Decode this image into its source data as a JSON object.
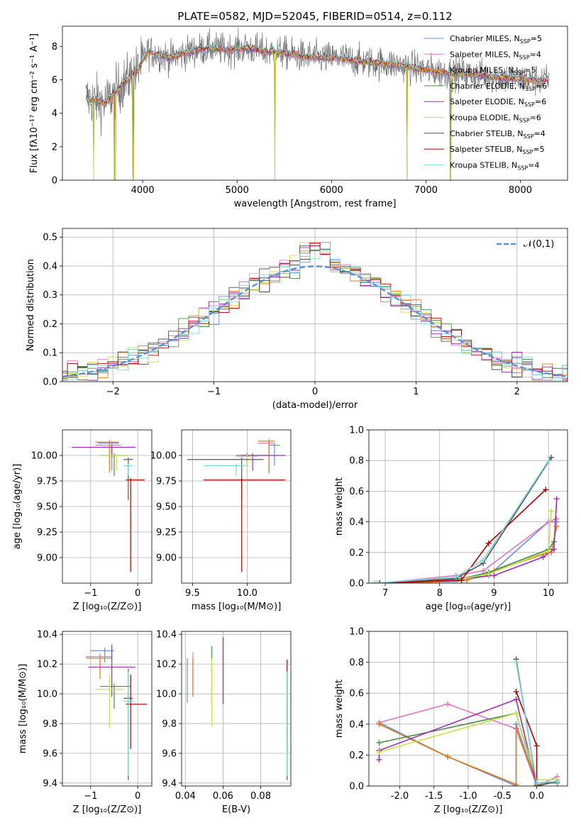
{
  "series_styles": [
    {
      "name": "Chabrier MILES, N",
      "sub": "SSP",
      "val": "=5",
      "color": "#6b8fd4"
    },
    {
      "name": "Salpeter MILES, N",
      "sub": "SSP",
      "val": "=4",
      "color": "#e377c2"
    },
    {
      "name": "Kroupa MILES, N",
      "sub": "SSP",
      "val": "=5",
      "color": "#e07b1a"
    },
    {
      "name": "Chabrier ELODIE, N",
      "sub": "SSP",
      "val": "=6",
      "color": "#4a8a4a"
    },
    {
      "name": "Salpeter ELODIE, N",
      "sub": "SSP",
      "val": "=6",
      "color": "#9b2fb5"
    },
    {
      "name": "Kroupa ELODIE, N",
      "sub": "SSP",
      "val": "=6",
      "color": "#c8e04a"
    },
    {
      "name": "Chabrier STELIB, N",
      "sub": "SSP",
      "val": "=4",
      "color": "#555555"
    },
    {
      "name": "Salpeter STELIB, N",
      "sub": "SSP",
      "val": "=5",
      "color": "#b00000"
    },
    {
      "name": "Kroupa STELIB, N",
      "sub": "SSP",
      "val": "=4",
      "color": "#7fd8e0"
    }
  ],
  "chart_data": [
    {
      "id": "spectrum",
      "type": "line",
      "title": "PLATE=0582, MJD=52045, FIBERID=0514, z=0.112",
      "xlabel": "wavelength [Angstrom, rest frame]",
      "ylabel": "Flux [fλ10⁻¹⁷ erg cm⁻² s⁻¹ A⁻¹]",
      "xlim": [
        3150,
        8500
      ],
      "ylim": [
        0,
        9.2
      ],
      "xticks": [
        4000,
        5000,
        6000,
        7000,
        8000
      ],
      "yticks": [
        0,
        2,
        4,
        6,
        8
      ],
      "data_range": [
        3400,
        8300
      ],
      "continuum_points": [
        [
          3400,
          4.9
        ],
        [
          3600,
          4.6
        ],
        [
          3800,
          5.8
        ],
        [
          3950,
          6.6
        ],
        [
          4050,
          7.7
        ],
        [
          4300,
          7.3
        ],
        [
          4500,
          7.7
        ],
        [
          4700,
          7.9
        ],
        [
          4900,
          7.8
        ],
        [
          5100,
          7.9
        ],
        [
          5300,
          7.7
        ],
        [
          5500,
          7.6
        ],
        [
          5700,
          7.4
        ],
        [
          5900,
          7.3
        ],
        [
          6100,
          7.3
        ],
        [
          6300,
          7.1
        ],
        [
          6500,
          7.0
        ],
        [
          6700,
          6.9
        ],
        [
          6900,
          6.7
        ],
        [
          7100,
          6.5
        ],
        [
          7300,
          6.4
        ],
        [
          7500,
          6.3
        ],
        [
          7700,
          6.2
        ],
        [
          7900,
          6.1
        ],
        [
          8100,
          6.0
        ],
        [
          8300,
          6.0
        ]
      ],
      "dips": [
        [
          3480,
          0
        ],
        [
          3700,
          0
        ],
        [
          3900,
          0
        ],
        [
          5400,
          0
        ],
        [
          6800,
          0
        ],
        [
          7260,
          0
        ]
      ],
      "legend": "right"
    },
    {
      "id": "residuals",
      "type": "step-histogram",
      "xlabel": "(data-model)/error",
      "ylabel": "Normed distribution",
      "xlim": [
        -2.5,
        2.5
      ],
      "ylim": [
        0,
        0.53
      ],
      "xticks": [
        -2,
        -1,
        0,
        1,
        2
      ],
      "yticks": [
        0.0,
        0.1,
        0.2,
        0.3,
        0.4,
        0.5
      ],
      "bin_width": 0.1,
      "reference": {
        "name": "𝒩(0,1)",
        "mean": 0,
        "sd": 1,
        "color": "#5b8fd6"
      },
      "grid": true
    },
    {
      "id": "age_vs_Z",
      "type": "errorbar",
      "xlabel": "Z [log₁₀(Z/Z⊙)]",
      "ylabel": "age  [log₁₀(age/yr)]",
      "xlim": [
        -1.6,
        0.3
      ],
      "ylim": [
        8.75,
        10.25
      ],
      "xticks": [
        -1,
        0
      ],
      "yticks": [
        9.0,
        9.25,
        9.5,
        9.75,
        10.0
      ],
      "points": [
        {
          "x": -0.55,
          "xerr": [
            0.3,
            0.15
          ],
          "y": 10.12,
          "yerr": [
            0.25,
            0.02
          ]
        },
        {
          "x": -0.55,
          "xerr": [
            0.35,
            0.2
          ],
          "y": 10.1,
          "yerr": [
            0.25,
            0.03
          ]
        },
        {
          "x": -0.6,
          "xerr": [
            0.3,
            0.2
          ],
          "y": 10.13,
          "yerr": [
            0.3,
            0.02
          ]
        },
        {
          "x": -0.5,
          "xerr": [
            0.3,
            0.3
          ],
          "y": 10.0,
          "yerr": [
            0.2,
            0.02
          ]
        },
        {
          "x": -0.55,
          "xerr": [
            0.85,
            0.5
          ],
          "y": 10.08,
          "yerr": [
            0.1,
            0.02
          ]
        },
        {
          "x": -0.45,
          "xerr": [
            0.35,
            0.3
          ],
          "y": 10.0,
          "yerr": [
            0.15,
            0.02
          ]
        },
        {
          "x": -0.2,
          "xerr": [
            0.1,
            0.1
          ],
          "y": 9.96,
          "yerr": [
            0.4,
            0.02
          ]
        },
        {
          "x": -0.15,
          "xerr": [
            0.1,
            0.3
          ],
          "y": 9.76,
          "yerr": [
            0.9,
            0.02
          ]
        },
        {
          "x": -0.2,
          "xerr": [
            0.1,
            0.1
          ],
          "y": 9.9,
          "yerr": [
            0.1,
            0.02
          ]
        }
      ]
    },
    {
      "id": "age_vs_mass",
      "type": "errorbar",
      "xlabel": "mass [log₁₀(M/M⊙)]",
      "ylabel": "",
      "xlim": [
        9.4,
        10.4
      ],
      "ylim": [
        8.75,
        10.25
      ],
      "xticks": [
        9.5,
        10.0
      ],
      "yticks": [
        9.0,
        9.25,
        9.5,
        9.75,
        10.0
      ],
      "points": [
        {
          "x": 10.25,
          "xerr": [
            0.05,
            0.05
          ],
          "y": 10.1,
          "yerr": [
            0.2,
            0.02
          ]
        },
        {
          "x": 10.2,
          "xerr": [
            0.1,
            0.05
          ],
          "y": 10.12,
          "yerr": [
            0.3,
            0.02
          ]
        },
        {
          "x": 10.2,
          "xerr": [
            0.1,
            0.05
          ],
          "y": 10.14,
          "yerr": [
            0.3,
            0.02
          ]
        },
        {
          "x": 10.0,
          "xerr": [
            0.1,
            0.2
          ],
          "y": 10.0,
          "yerr": [
            0.1,
            0.02
          ]
        },
        {
          "x": 10.05,
          "xerr": [
            0.1,
            0.3
          ],
          "y": 10.0,
          "yerr": [
            0.15,
            0.02
          ]
        },
        {
          "x": 10.0,
          "xerr": [
            0.1,
            0.1
          ],
          "y": 9.99,
          "yerr": [
            0.1,
            0.02
          ]
        },
        {
          "x": 9.95,
          "xerr": [
            0.5,
            0.2
          ],
          "y": 9.96,
          "yerr": [
            0.4,
            0.02
          ]
        },
        {
          "x": 9.95,
          "xerr": [
            0.35,
            0.4
          ],
          "y": 9.76,
          "yerr": [
            0.9,
            0.02
          ]
        },
        {
          "x": 9.9,
          "xerr": [
            0.3,
            0.1
          ],
          "y": 9.9,
          "yerr": [
            0.1,
            0.02
          ]
        }
      ]
    },
    {
      "id": "mass_weight_vs_age",
      "type": "line",
      "xlabel": "age  [log₁₀(age/yr)]",
      "ylabel": "mass weight",
      "xlim": [
        6.7,
        10.35
      ],
      "ylim": [
        0,
        1.0
      ],
      "xticks": [
        7,
        8,
        9,
        10
      ],
      "yticks": [
        0.0,
        0.2,
        0.4,
        0.6,
        0.8,
        1.0
      ],
      "series": [
        {
          "x": [
            6.8,
            8.3,
            8.9,
            10.0,
            10.15
          ],
          "y": [
            0.0,
            0.01,
            0.05,
            0.4,
            0.4
          ]
        },
        {
          "x": [
            6.9,
            8.3,
            8.8,
            10.0,
            10.15
          ],
          "y": [
            0.0,
            0.05,
            0.08,
            0.4,
            0.42
          ]
        },
        {
          "x": [
            7.5,
            8.5,
            9.0,
            10.0,
            10.05,
            10.15
          ],
          "y": [
            0.0,
            0.02,
            0.08,
            0.2,
            0.2,
            0.37
          ]
        },
        {
          "x": [
            6.85,
            8.3,
            8.9,
            10.0,
            10.1
          ],
          "y": [
            0.0,
            0.02,
            0.07,
            0.22,
            0.27
          ]
        },
        {
          "x": [
            6.9,
            8.4,
            9.0,
            9.9,
            10.1,
            10.15
          ],
          "y": [
            0.0,
            0.03,
            0.05,
            0.17,
            0.22,
            0.55
          ]
        },
        {
          "x": [
            6.85,
            8.3,
            8.9,
            10.0,
            10.05
          ],
          "y": [
            0.0,
            0.02,
            0.06,
            0.21,
            0.47
          ]
        },
        {
          "x": [
            6.8,
            8.3,
            8.8,
            10.05
          ],
          "y": [
            0.0,
            0.03,
            0.13,
            0.82
          ]
        },
        {
          "x": [
            6.9,
            8.4,
            8.9,
            9.95
          ],
          "y": [
            0.0,
            0.02,
            0.26,
            0.61
          ]
        },
        {
          "x": [
            6.8,
            8.3,
            8.8,
            10.0
          ],
          "y": [
            0.0,
            0.04,
            0.15,
            0.8
          ]
        }
      ]
    },
    {
      "id": "mass_vs_Z",
      "type": "errorbar",
      "xlabel": "Z [log₁₀(Z/Z⊙)]",
      "ylabel": "mass [log₁₀(M/M⊙)]",
      "xlim": [
        -1.6,
        0.3
      ],
      "ylim": [
        9.38,
        10.42
      ],
      "xticks": [
        -1,
        0
      ],
      "yticks": [
        9.4,
        9.6,
        9.8,
        10.0,
        10.2,
        10.4
      ],
      "points": [
        {
          "x": -0.7,
          "xerr": [
            0.3,
            0.2
          ],
          "y": 10.29,
          "yerr": [
            0.08,
            0.02
          ]
        },
        {
          "x": -0.8,
          "xerr": [
            0.3,
            0.25
          ],
          "y": 10.25,
          "yerr": [
            0.11,
            0.02
          ]
        },
        {
          "x": -0.8,
          "xerr": [
            0.3,
            0.25
          ],
          "y": 10.24,
          "yerr": [
            0.14,
            0.02
          ]
        },
        {
          "x": -0.5,
          "xerr": [
            0.3,
            0.35
          ],
          "y": 10.05,
          "yerr": [
            0.15,
            0.02
          ]
        },
        {
          "x": -0.55,
          "xerr": [
            0.5,
            0.5
          ],
          "y": 10.18,
          "yerr": [
            0.2,
            0.15
          ]
        },
        {
          "x": -0.6,
          "xerr": [
            0.3,
            0.3
          ],
          "y": 10.03,
          "yerr": [
            0.26,
            0.1
          ]
        },
        {
          "x": -0.2,
          "xerr": [
            0.1,
            0.1
          ],
          "y": 9.97,
          "yerr": [
            0.55,
            0.2
          ]
        },
        {
          "x": -0.15,
          "xerr": [
            0.1,
            0.35
          ],
          "y": 9.93,
          "yerr": [
            0.3,
            0.2
          ]
        },
        {
          "x": -0.2,
          "xerr": [
            0.1,
            0.1
          ],
          "y": 9.95,
          "yerr": [
            0.5,
            0.2
          ]
        }
      ]
    },
    {
      "id": "mass_vs_EBV",
      "type": "errorbar",
      "xlabel": "E(B-V)",
      "ylabel": "",
      "xlim": [
        0.038,
        0.096
      ],
      "ylim": [
        9.38,
        10.42
      ],
      "xticks": [
        0.04,
        0.06,
        0.08
      ],
      "yticks": [
        9.4,
        9.6,
        9.8,
        10.0,
        10.2,
        10.4
      ],
      "points": [
        {
          "x": 0.041,
          "yerr": [
            0.18,
            0.12
          ],
          "y": 10.12
        },
        {
          "x": 0.044,
          "yerr": [
            0.15,
            0.15
          ],
          "y": 10.13
        },
        {
          "x": 0.044,
          "yerr": [
            0.14,
            0.12
          ],
          "y": 10.12
        },
        {
          "x": 0.054,
          "yerr": [
            0.2,
            0.2
          ],
          "y": 10.12
        },
        {
          "x": 0.06,
          "yerr": [
            0.25,
            0.2
          ],
          "y": 10.18
        },
        {
          "x": 0.054,
          "yerr": [
            0.26,
            0.2
          ],
          "y": 10.04
        },
        {
          "x": 0.094,
          "yerr": [
            0.55,
            0.15
          ],
          "y": 9.97
        },
        {
          "x": 0.094,
          "yerr": [
            0.3,
            0.3
          ],
          "y": 9.93
        },
        {
          "x": 0.094,
          "yerr": [
            0.5,
            0.2
          ],
          "y": 9.95
        }
      ]
    },
    {
      "id": "mass_weight_vs_Z",
      "type": "line",
      "xlabel": "Z [log₁₀(Z/Z⊙)]",
      "ylabel": "mass weight",
      "xlim": [
        -2.45,
        0.45
      ],
      "ylim": [
        0,
        1.0
      ],
      "xticks": [
        -2.0,
        -1.5,
        -1.0,
        -0.5,
        0.0
      ],
      "yticks": [
        0.0,
        0.2,
        0.4,
        0.6,
        0.8,
        1.0
      ],
      "series": [
        {
          "x": [
            -2.3,
            -1.3,
            -0.3,
            -0.3,
            0.0
          ],
          "y": [
            0.41,
            0.19,
            0.0,
            0.4,
            0.01
          ]
        },
        {
          "x": [
            -2.3,
            -1.3,
            -0.3,
            0.0,
            0.3
          ],
          "y": [
            0.41,
            0.53,
            0.37,
            0.0,
            0.06
          ]
        },
        {
          "x": [
            -2.3,
            -1.3,
            -0.3,
            -0.3,
            0.0
          ],
          "y": [
            0.4,
            0.19,
            0.01,
            0.37,
            0.01
          ]
        },
        {
          "x": [
            -2.3,
            -0.3,
            0.0,
            0.3
          ],
          "y": [
            0.28,
            0.47,
            0.02,
            0.02
          ]
        },
        {
          "x": [
            -2.3,
            -2.3,
            -0.3,
            0.0,
            0.3
          ],
          "y": [
            0.17,
            0.23,
            0.56,
            0.0,
            0.03
          ]
        },
        {
          "x": [
            -2.3,
            -0.3,
            0.0,
            0.3
          ],
          "y": [
            0.22,
            0.47,
            0.04,
            0.04
          ]
        },
        {
          "x": [
            -0.3,
            0.0,
            0.3
          ],
          "y": [
            0.82,
            0.0,
            0.03
          ]
        },
        {
          "x": [
            -0.3,
            0.0,
            0.0
          ],
          "y": [
            0.61,
            0.26,
            0.0
          ]
        },
        {
          "x": [
            -0.3,
            0.0,
            0.3
          ],
          "y": [
            0.8,
            0.02,
            0.03
          ]
        }
      ]
    }
  ]
}
